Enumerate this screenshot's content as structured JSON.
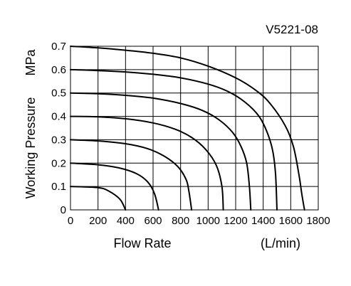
{
  "chart_data": {
    "type": "line",
    "title": "V5221-08",
    "xlabel": "Flow Rate",
    "xunit": "(L/min)",
    "ylabel": "Working Pressure",
    "yunit": "MPa",
    "xlim": [
      0,
      1800
    ],
    "ylim": [
      0,
      0.7
    ],
    "grid": true,
    "xticks": [
      "0",
      "200",
      "400",
      "600",
      "800",
      "1000",
      "1200",
      "1400",
      "1600",
      "1800"
    ],
    "yticks": [
      "0",
      "0.1",
      "0.2",
      "0.3",
      "0.4",
      "0.5",
      "0.6",
      "0.7"
    ],
    "series": [
      {
        "x": [
          0,
          200,
          280,
          360,
          400
        ],
        "y": [
          0.1,
          0.095,
          0.08,
          0.045,
          0.0
        ]
      },
      {
        "x": [
          0,
          200,
          350,
          480,
          560,
          610,
          640
        ],
        "y": [
          0.2,
          0.193,
          0.18,
          0.155,
          0.12,
          0.07,
          0.0
        ]
      },
      {
        "x": [
          0,
          200,
          400,
          560,
          680,
          780,
          840,
          860,
          880
        ],
        "y": [
          0.3,
          0.295,
          0.283,
          0.262,
          0.23,
          0.185,
          0.13,
          0.08,
          0.0
        ]
      },
      {
        "x": [
          0,
          200,
          400,
          600,
          760,
          880,
          980,
          1060,
          1100,
          1110
        ],
        "y": [
          0.4,
          0.398,
          0.39,
          0.372,
          0.345,
          0.31,
          0.26,
          0.19,
          0.1,
          0.0
        ]
      },
      {
        "x": [
          0,
          200,
          400,
          600,
          800,
          960,
          1080,
          1180,
          1240,
          1280,
          1300,
          1310
        ],
        "y": [
          0.5,
          0.497,
          0.49,
          0.478,
          0.455,
          0.425,
          0.385,
          0.33,
          0.27,
          0.2,
          0.1,
          0.0
        ]
      },
      {
        "x": [
          0,
          200,
          400,
          600,
          800,
          1000,
          1150,
          1270,
          1370,
          1430,
          1470,
          1490,
          1500
        ],
        "y": [
          0.6,
          0.596,
          0.59,
          0.58,
          0.565,
          0.538,
          0.505,
          0.46,
          0.4,
          0.33,
          0.25,
          0.15,
          0.0
        ]
      },
      {
        "x": [
          0,
          200,
          400,
          600,
          800,
          1000,
          1200,
          1350,
          1450,
          1560,
          1620,
          1660,
          1680,
          1700
        ],
        "y": [
          0.7,
          0.693,
          0.683,
          0.67,
          0.65,
          0.615,
          0.565,
          0.51,
          0.455,
          0.36,
          0.27,
          0.15,
          0.07,
          0.0
        ]
      }
    ]
  }
}
